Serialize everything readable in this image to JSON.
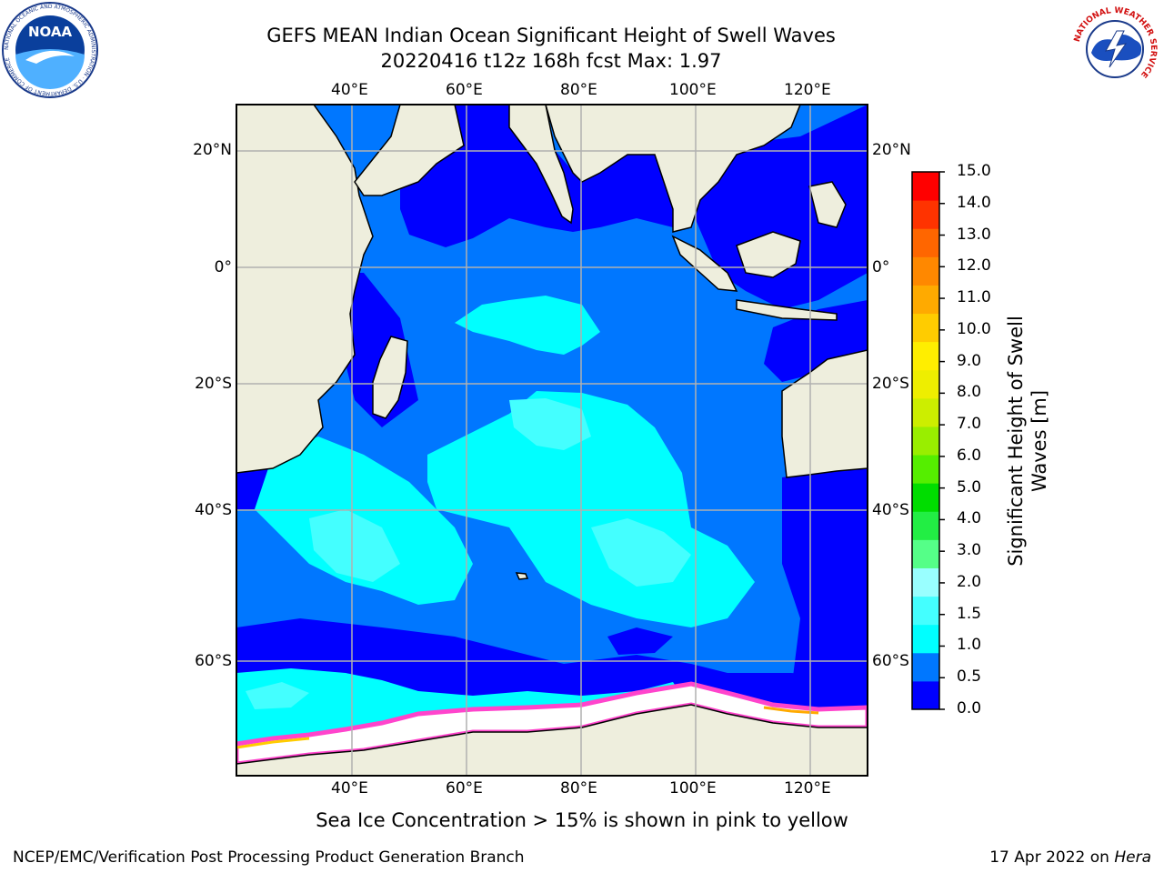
{
  "title": {
    "line1": "GEFS MEAN Indian Ocean Significant Height of Swell Waves",
    "line2": "20220416 t12z 168h fcst   Max: 1.97"
  },
  "axes": {
    "lon_ticks": [
      "40°E",
      "60°E",
      "80°E",
      "100°E",
      "120°E"
    ],
    "lat_ticks": [
      "20°N",
      "0°",
      "20°S",
      "40°S",
      "60°S"
    ]
  },
  "colorbar": {
    "title_line1": "Significant Height of Swell",
    "title_line2": "Waves [m]",
    "labels": [
      "15.0",
      "14.0",
      "13.0",
      "12.0",
      "11.0",
      "10.0",
      "9.0",
      "8.0",
      "7.0",
      "6.0",
      "5.0",
      "4.0",
      "3.0",
      "2.0",
      "1.5",
      "1.0",
      "0.5",
      "0.0"
    ],
    "colors": [
      "#0000ff",
      "#0077ff",
      "#00ffff",
      "#44ffff",
      "#99ffff",
      "#55ff88",
      "#22ee44",
      "#00dd00",
      "#55ee00",
      "#99ee00",
      "#ccee00",
      "#eeee00",
      "#ffee00",
      "#ffcc00",
      "#ffaa00",
      "#ff8800",
      "#ff6600",
      "#ff3300",
      "#ff0000"
    ]
  },
  "logos": {
    "noaa_text": "NOAA",
    "noaa_ring": "NATIONAL OCEANIC AND ATMOSPHERIC ADMINISTRATION · U.S. DEPARTMENT OF COMMERCE",
    "nws_ring": "NATIONAL WEATHER SERVICE"
  },
  "caption": "Sea Ice Concentration > 15% is shown in pink to yellow",
  "footer": {
    "left": "NCEP/EMC/Verification Post Processing Product Generation Branch",
    "right_date": "17 Apr 2022 on ",
    "right_host": "Hera"
  }
}
